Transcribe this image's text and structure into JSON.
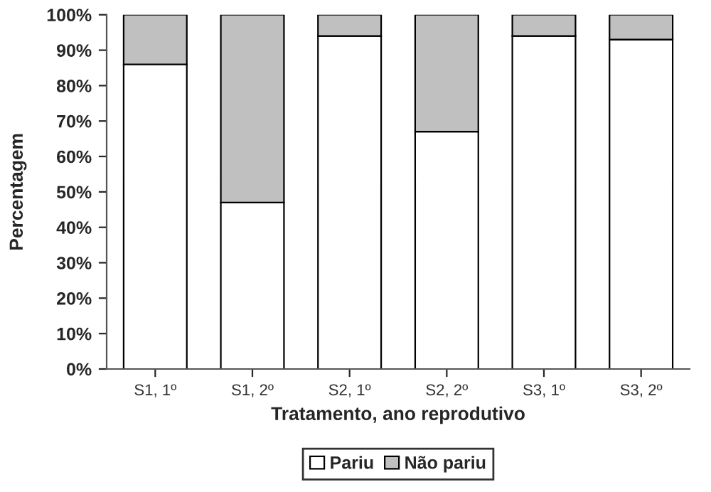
{
  "chart_data": {
    "type": "bar",
    "stacked": true,
    "xlabel": "Tratamento, ano reprodutivo",
    "ylabel": "Percentagem",
    "categories": [
      "S1, 1º",
      "S1, 2º",
      "S2, 1º",
      "S2, 2º",
      "S3, 1º",
      "S3, 2º"
    ],
    "series": [
      {
        "name": "Pariu",
        "color": "#ffffff",
        "values": [
          86,
          47,
          94,
          67,
          94,
          93
        ]
      },
      {
        "name": "Não pariu",
        "color": "#c0c0c0",
        "values": [
          14,
          53,
          6,
          33,
          6,
          7
        ]
      }
    ],
    "ylim": [
      0,
      100
    ],
    "yticks": [
      {
        "value": 0,
        "label": "0%"
      },
      {
        "value": 10,
        "label": "10%"
      },
      {
        "value": 20,
        "label": "20%"
      },
      {
        "value": 30,
        "label": "30%"
      },
      {
        "value": 40,
        "label": "40%"
      },
      {
        "value": 50,
        "label": "50%"
      },
      {
        "value": 60,
        "label": "60%"
      },
      {
        "value": 70,
        "label": "70%"
      },
      {
        "value": 80,
        "label": "80%"
      },
      {
        "value": 90,
        "label": "90%"
      },
      {
        "value": 100,
        "label": "100%"
      }
    ],
    "grid": false,
    "legend": "bottom"
  }
}
